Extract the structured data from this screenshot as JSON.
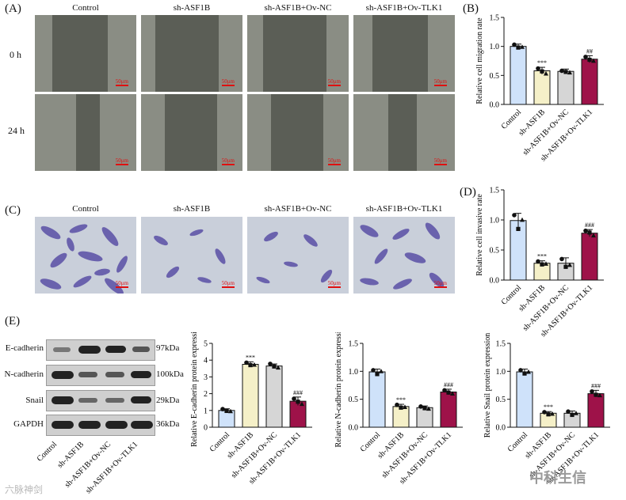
{
  "panels": {
    "A": {
      "label": "(A)",
      "columns": [
        "Control",
        "sh-ASF1B",
        "sh-ASF1B+Ov-NC",
        "sh-ASF1B+Ov-TLK1"
      ],
      "rows": [
        "0 h",
        "24 h"
      ],
      "scalebar": "50μm"
    },
    "B": {
      "label": "(B)"
    },
    "C": {
      "label": "(C)",
      "columns": [
        "Control",
        "sh-ASF1B",
        "sh-ASF1B+Ov-NC",
        "sh-ASF1B+Ov-TLK1"
      ],
      "scalebar": "50μm"
    },
    "D": {
      "label": "(D)"
    },
    "E": {
      "label": "(E)",
      "proteins": [
        "E-cadherin",
        "N-cadherin",
        "Snail",
        "GAPDH"
      ],
      "kda": [
        "97kDa",
        "100kDa",
        "29kDa",
        "36kDa"
      ],
      "lanes": [
        "Control",
        "sh-ASF1B",
        "sh-ASF1B+Ov-NC",
        "sh-ASF1B+Ov-TLK1"
      ]
    }
  },
  "watermarks": {
    "left": "六脉神剑",
    "right": "中科生信"
  },
  "colors": {
    "control": "#cfe2fa",
    "sh": "#f5f0c8",
    "nc": "#d6d6d6",
    "tlk1": "#9e1249"
  },
  "chart_data": [
    {
      "id": "B",
      "type": "bar",
      "categories": [
        "Control",
        "sh-ASF1B",
        "sh-ASF1B+Ov-NC",
        "sh-ASF1B+Ov-TLK1"
      ],
      "values": [
        1.0,
        0.58,
        0.57,
        0.78
      ],
      "errors": [
        0.04,
        0.06,
        0.04,
        0.06
      ],
      "points": [
        [
          1.03,
          0.98,
          0.99
        ],
        [
          0.62,
          0.57,
          0.53
        ],
        [
          0.58,
          0.56,
          0.55
        ],
        [
          0.82,
          0.77,
          0.75
        ]
      ],
      "ylabel": "Relative cell migration rate",
      "ylim": [
        0,
        1.5
      ],
      "yticks": [
        "0.0",
        "0.5",
        "1.0",
        "1.5"
      ],
      "annotations": [
        "",
        "***",
        "",
        "##"
      ]
    },
    {
      "id": "D",
      "type": "bar",
      "categories": [
        "Control",
        "sh-ASF1B",
        "sh-ASF1B+Ov-NC",
        "sh-ASF1B+Ov-TLK1"
      ],
      "values": [
        0.99,
        0.28,
        0.28,
        0.78
      ],
      "errors": [
        0.12,
        0.04,
        0.09,
        0.06
      ],
      "points": [
        [
          1.08,
          0.85,
          1.0
        ],
        [
          0.31,
          0.26,
          0.27
        ],
        [
          0.35,
          0.22,
          0.25
        ],
        [
          0.82,
          0.79,
          0.74
        ]
      ],
      "ylabel": "Relative cell invasive rate",
      "ylim": [
        0,
        1.5
      ],
      "yticks": [
        "0.0",
        "0.5",
        "1.0",
        "1.5"
      ],
      "annotations": [
        "",
        "***",
        "",
        "###"
      ]
    },
    {
      "id": "E1",
      "type": "bar",
      "categories": [
        "Control",
        "sh-ASF1B",
        "sh-ASF1B+Ov-NC",
        "sh-ASF1B+Ov-TLK1"
      ],
      "values": [
        1.0,
        3.75,
        3.65,
        1.55
      ],
      "errors": [
        0.1,
        0.15,
        0.12,
        0.25
      ],
      "points": [
        [
          1.08,
          0.97,
          0.95
        ],
        [
          3.85,
          3.7,
          3.72
        ],
        [
          3.78,
          3.62,
          3.55
        ],
        [
          1.7,
          1.52,
          1.38
        ]
      ],
      "ylabel": "Relative E-cadherin protein expression",
      "ylim": [
        0,
        5
      ],
      "yticks": [
        "0",
        "1",
        "2",
        "3",
        "4",
        "5"
      ],
      "annotations": [
        "",
        "***",
        "",
        "###"
      ]
    },
    {
      "id": "E2",
      "type": "bar",
      "categories": [
        "Control",
        "sh-ASF1B",
        "sh-ASF1B+Ov-NC",
        "sh-ASF1B+Ov-TLK1"
      ],
      "values": [
        0.99,
        0.37,
        0.35,
        0.63
      ],
      "errors": [
        0.05,
        0.04,
        0.03,
        0.05
      ],
      "points": [
        [
          1.02,
          0.95,
          1.0
        ],
        [
          0.4,
          0.35,
          0.36
        ],
        [
          0.37,
          0.34,
          0.33
        ],
        [
          0.66,
          0.62,
          0.6
        ]
      ],
      "ylabel": "Relative N-cadherin protein expression",
      "ylim": [
        0,
        1.5
      ],
      "yticks": [
        "0.0",
        "0.5",
        "1.0",
        "1.5"
      ],
      "annotations": [
        "",
        "***",
        "",
        "###"
      ]
    },
    {
      "id": "E3",
      "type": "bar",
      "categories": [
        "Control",
        "sh-ASF1B",
        "sh-ASF1B+Ov-NC",
        "sh-ASF1B+Ov-TLK1"
      ],
      "values": [
        0.99,
        0.25,
        0.25,
        0.6
      ],
      "errors": [
        0.05,
        0.03,
        0.04,
        0.06
      ],
      "points": [
        [
          1.02,
          0.96,
          0.99
        ],
        [
          0.27,
          0.23,
          0.24
        ],
        [
          0.28,
          0.22,
          0.25
        ],
        [
          0.64,
          0.58,
          0.57
        ]
      ],
      "ylabel": "Relative Snail protein expression",
      "ylim": [
        0,
        1.5
      ],
      "yticks": [
        "0.0",
        "0.5",
        "1.0",
        "1.5"
      ],
      "annotations": [
        "",
        "***",
        "",
        "###"
      ]
    }
  ]
}
